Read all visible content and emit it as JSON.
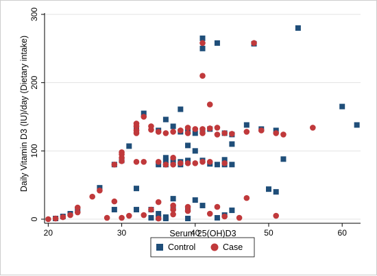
{
  "chart_data": {
    "type": "scatter",
    "xlabel": "Serum 25(OH)D3",
    "ylabel": "Daily Vitamin D3 (IU)/day (Dietary intake)",
    "xlim": [
      19.5,
      62.5
    ],
    "ylim": [
      -6,
      302
    ],
    "xticks": [
      20,
      30,
      40,
      50,
      60
    ],
    "yticks": [
      0,
      100,
      200,
      300
    ],
    "grid": "horizontal",
    "legend_position": "bottom",
    "series": [
      {
        "name": "Control",
        "marker": "square",
        "color": "#1f4e79",
        "points": [
          [
            21,
            1
          ],
          [
            22,
            4
          ],
          [
            23,
            8
          ],
          [
            24,
            13
          ],
          [
            27,
            46
          ],
          [
            29,
            80
          ],
          [
            29,
            14
          ],
          [
            30,
            86
          ],
          [
            31,
            107
          ],
          [
            32,
            45
          ],
          [
            32,
            14
          ],
          [
            32,
            131
          ],
          [
            33,
            155
          ],
          [
            34,
            2
          ],
          [
            34,
            14
          ],
          [
            35,
            130
          ],
          [
            35,
            80
          ],
          [
            35,
            8
          ],
          [
            35,
            2
          ],
          [
            36,
            146
          ],
          [
            36,
            90
          ],
          [
            36,
            86
          ],
          [
            36,
            80
          ],
          [
            36,
            3
          ],
          [
            36,
            1
          ],
          [
            37,
            136
          ],
          [
            37,
            30
          ],
          [
            37,
            16
          ],
          [
            37,
            85
          ],
          [
            38,
            161
          ],
          [
            38,
            128
          ],
          [
            38,
            84
          ],
          [
            38,
            80
          ],
          [
            39,
            132
          ],
          [
            39,
            108
          ],
          [
            39,
            86
          ],
          [
            39,
            14
          ],
          [
            39,
            1
          ],
          [
            40,
            126
          ],
          [
            40,
            100
          ],
          [
            40,
            28
          ],
          [
            41,
            265
          ],
          [
            41,
            250
          ],
          [
            41,
            130
          ],
          [
            41,
            86
          ],
          [
            41,
            20
          ],
          [
            42,
            132
          ],
          [
            42,
            81
          ],
          [
            43,
            258
          ],
          [
            43,
            80
          ],
          [
            43,
            2
          ],
          [
            44,
            126
          ],
          [
            44,
            87
          ],
          [
            44,
            80
          ],
          [
            44,
            6
          ],
          [
            45,
            124
          ],
          [
            45,
            110
          ],
          [
            45,
            80
          ],
          [
            45,
            13
          ],
          [
            47,
            138
          ],
          [
            48,
            257
          ],
          [
            49,
            132
          ],
          [
            50,
            44
          ],
          [
            51,
            130
          ],
          [
            51,
            40
          ],
          [
            52,
            88
          ],
          [
            54,
            280
          ],
          [
            60,
            165
          ],
          [
            62,
            138
          ]
        ]
      },
      {
        "name": "Case",
        "marker": "circle",
        "color": "#c0393b",
        "points": [
          [
            20,
            0
          ],
          [
            21,
            1
          ],
          [
            22,
            3
          ],
          [
            23,
            6
          ],
          [
            24,
            10
          ],
          [
            24,
            17
          ],
          [
            26,
            33
          ],
          [
            27,
            42
          ],
          [
            28,
            2
          ],
          [
            29,
            80
          ],
          [
            29,
            26
          ],
          [
            30,
            85
          ],
          [
            30,
            90
          ],
          [
            30,
            95
          ],
          [
            30,
            98
          ],
          [
            30,
            2
          ],
          [
            31,
            5
          ],
          [
            32,
            140
          ],
          [
            32,
            136
          ],
          [
            32,
            130
          ],
          [
            32,
            126
          ],
          [
            32,
            84
          ],
          [
            33,
            150
          ],
          [
            33,
            84
          ],
          [
            33,
            6
          ],
          [
            34,
            136
          ],
          [
            34,
            131
          ],
          [
            34,
            14
          ],
          [
            35,
            128
          ],
          [
            35,
            84
          ],
          [
            35,
            25
          ],
          [
            35,
            1
          ],
          [
            36,
            126
          ],
          [
            36,
            80
          ],
          [
            37,
            128
          ],
          [
            37,
            90
          ],
          [
            37,
            80
          ],
          [
            37,
            20
          ],
          [
            37,
            14
          ],
          [
            37,
            7
          ],
          [
            38,
            130
          ],
          [
            38,
            82
          ],
          [
            39,
            134
          ],
          [
            39,
            126
          ],
          [
            39,
            82
          ],
          [
            39,
            18
          ],
          [
            39,
            12
          ],
          [
            40,
            132
          ],
          [
            40,
            82
          ],
          [
            41,
            258
          ],
          [
            41,
            210
          ],
          [
            41,
            132
          ],
          [
            41,
            126
          ],
          [
            41,
            84
          ],
          [
            42,
            168
          ],
          [
            42,
            133
          ],
          [
            42,
            84
          ],
          [
            42,
            8
          ],
          [
            43,
            134
          ],
          [
            43,
            124
          ],
          [
            43,
            18
          ],
          [
            44,
            126
          ],
          [
            44,
            82
          ],
          [
            44,
            4
          ],
          [
            45,
            125
          ],
          [
            46,
            2
          ],
          [
            47,
            128
          ],
          [
            47,
            31
          ],
          [
            48,
            258
          ],
          [
            49,
            130
          ],
          [
            51,
            126
          ],
          [
            51,
            5
          ],
          [
            52,
            124
          ],
          [
            56,
            134
          ]
        ]
      }
    ]
  },
  "legend": {
    "items": [
      {
        "label": "Control",
        "marker": "square",
        "color": "#1f4e79"
      },
      {
        "label": "Case",
        "marker": "circle",
        "color": "#c0393b"
      }
    ]
  }
}
